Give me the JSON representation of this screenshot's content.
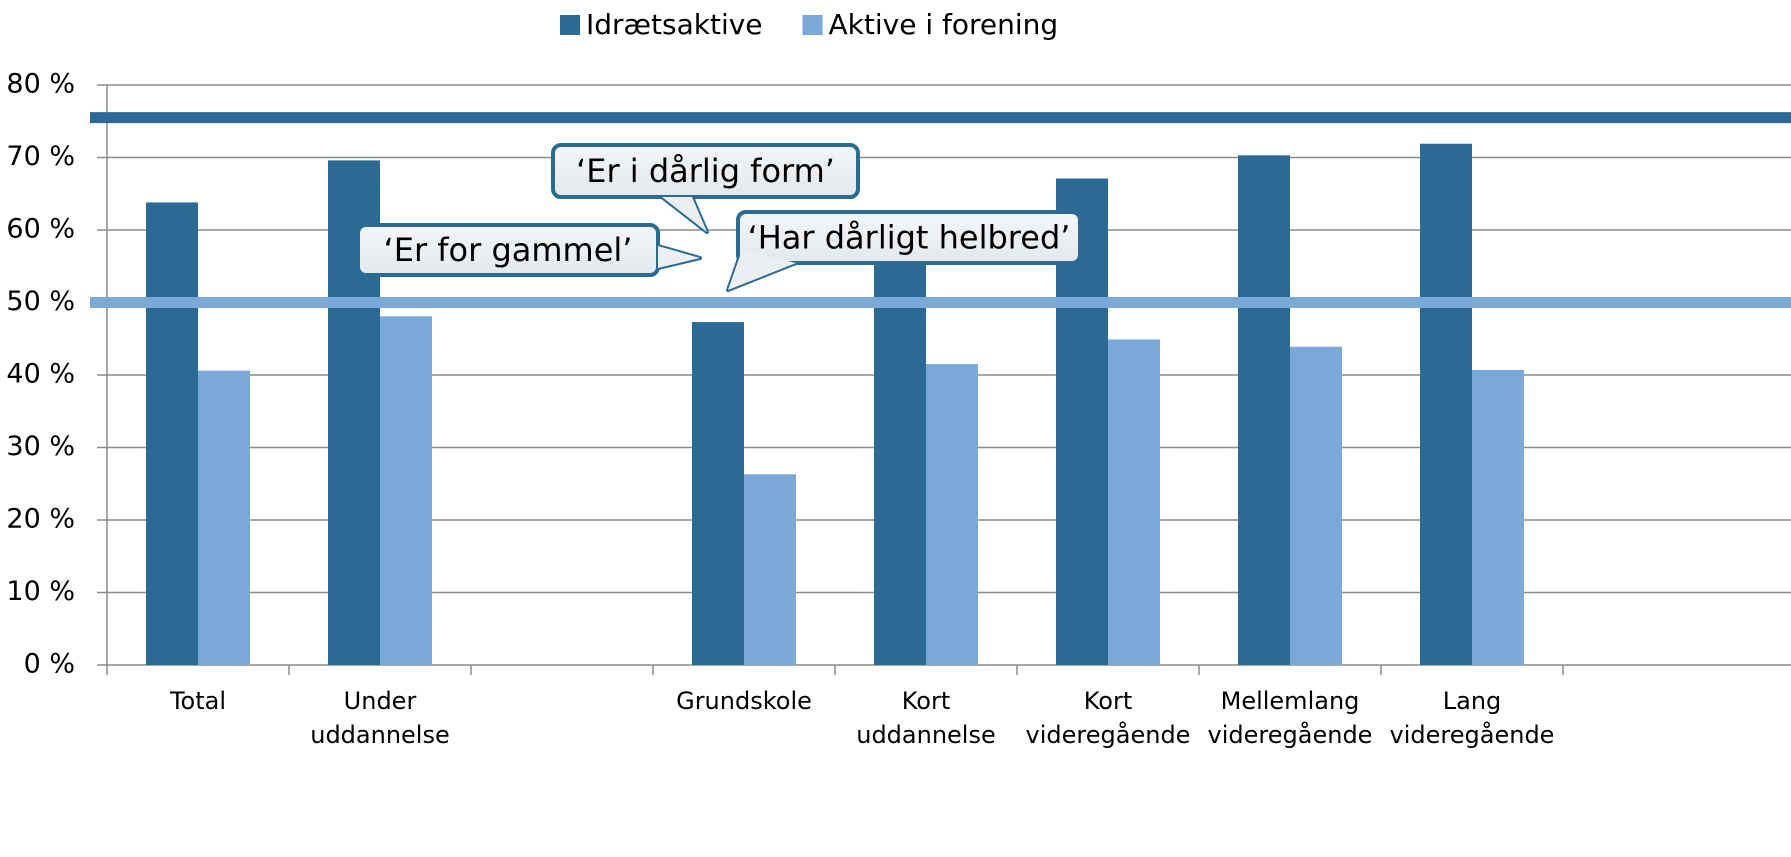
{
  "chart_data": {
    "type": "bar",
    "categories": [
      "Total",
      "Under uddannelse",
      null,
      "Grundskole",
      "Kort uddannelse",
      "Kort videregående",
      "Mellemlang videregående",
      "Lang videregående"
    ],
    "series": [
      {
        "name": "Idrætsaktive",
        "color": "#2a6a93",
        "values": [
          63.8,
          69.6,
          null,
          47.3,
          58.5,
          67.1,
          70.3,
          71.9
        ]
      },
      {
        "name": "Aktive i forening",
        "color": "#7aa9d8",
        "values": [
          40.6,
          48.1,
          null,
          26.3,
          41.5,
          44.9,
          43.9,
          40.7
        ]
      }
    ],
    "ylim": [
      0,
      80
    ],
    "yticks": [
      {
        "value": 0,
        "label": "0 %"
      },
      {
        "value": 10,
        "label": "10 %"
      },
      {
        "value": 20,
        "label": "20 %"
      },
      {
        "value": 30,
        "label": "30 %"
      },
      {
        "value": 40,
        "label": "40 %"
      },
      {
        "value": 50,
        "label": "50 %"
      },
      {
        "value": 60,
        "label": "60 %"
      },
      {
        "value": 70,
        "label": "70 %"
      },
      {
        "value": 80,
        "label": "80 %"
      }
    ],
    "grid": true,
    "legend": "top",
    "reference_lines": [
      {
        "value": 75.5,
        "color": "#2a6a93"
      },
      {
        "value": 50,
        "color": "#7aa9d8"
      }
    ],
    "annotations": [
      "‘Er i dårlig form’",
      "‘Er for gammel’",
      "‘Har dårligt helbred’"
    ]
  }
}
